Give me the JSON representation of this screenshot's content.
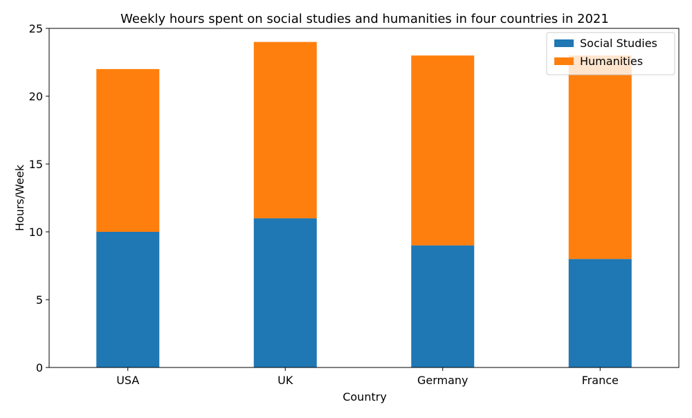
{
  "chart_data": {
    "type": "bar",
    "stacked": true,
    "title": "Weekly hours spent on social studies and humanities in four countries in 2021",
    "xlabel": "Country",
    "ylabel": "Hours/Week",
    "categories": [
      "USA",
      "UK",
      "Germany",
      "France"
    ],
    "series": [
      {
        "name": "Social Studies",
        "values": [
          10,
          11,
          9,
          8
        ],
        "color": "#1f77b4"
      },
      {
        "name": "Humanities",
        "values": [
          12,
          13,
          14,
          15
        ],
        "color": "#ff7f0e"
      }
    ],
    "ylim": [
      0,
      25
    ],
    "yticks": [
      0,
      5,
      10,
      15,
      20,
      25
    ],
    "grid": false,
    "legend_position": "top-right"
  }
}
